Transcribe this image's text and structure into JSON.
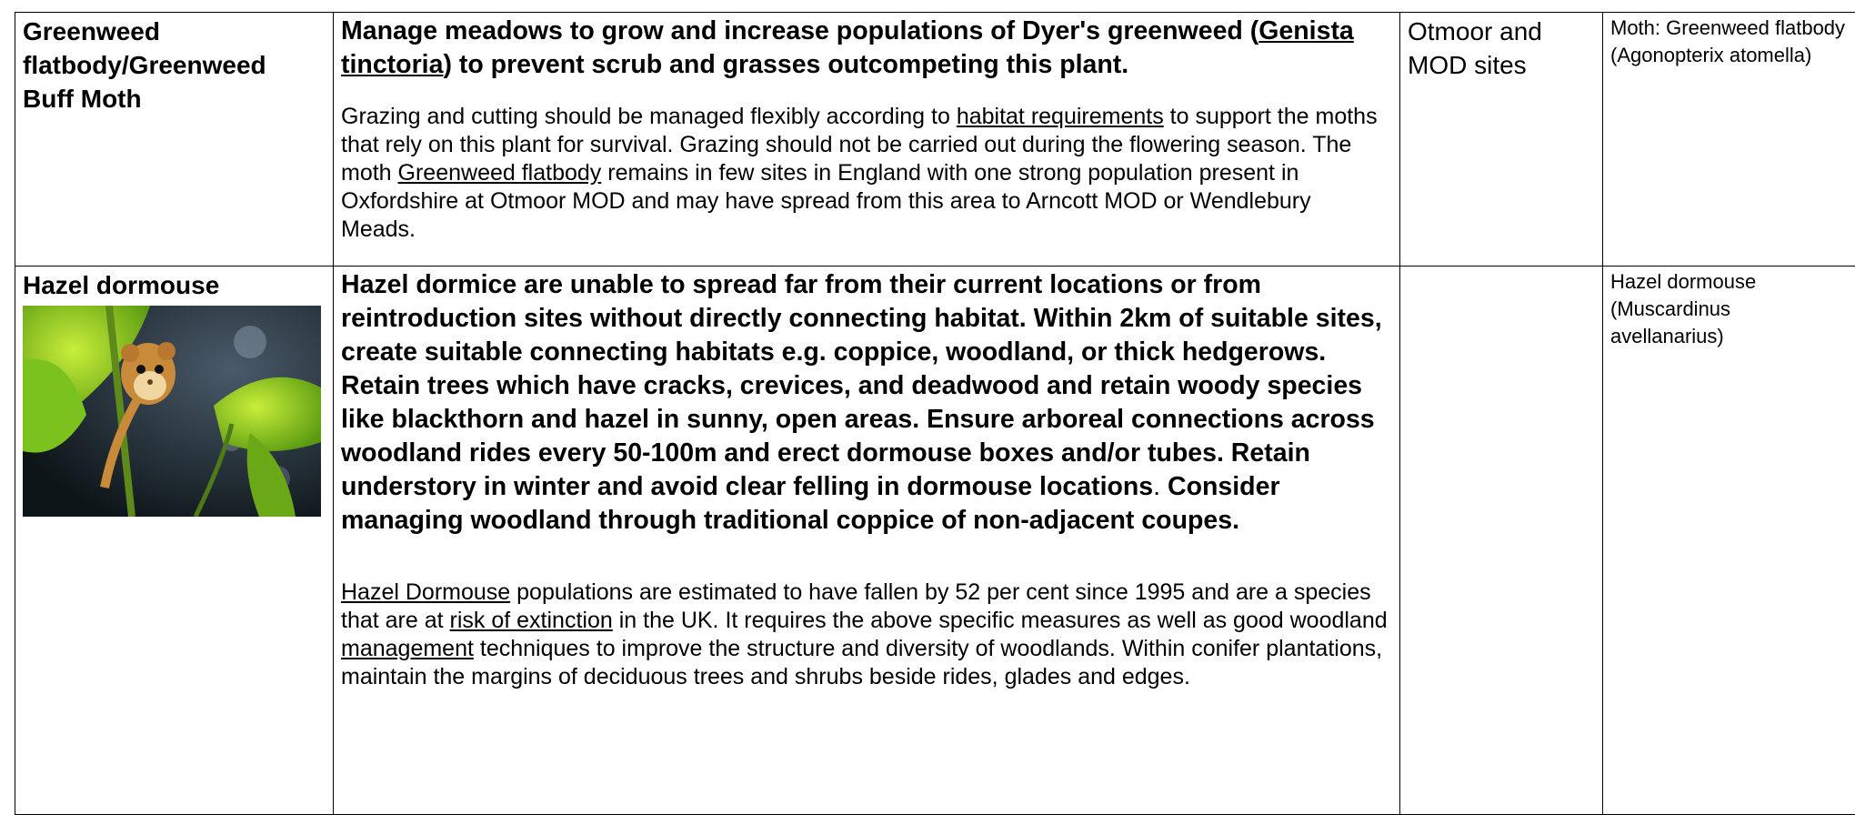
{
  "table": {
    "rows": [
      {
        "species": "Greenweed flatbody/Greenweed Buff Moth",
        "heading": [
          {
            "text": "Manage meadows to grow and increase populations of Dyer's greenweed ("
          },
          {
            "text": "Genista tinctoria",
            "link": true
          },
          {
            "text": ") to prevent scrub and grasses outcompeting this plant."
          }
        ],
        "details": [
          {
            "text": "Grazing and cutting should be managed flexibly according to "
          },
          {
            "text": "habitat requirements",
            "link": true
          },
          {
            "text": " to support the moths that rely on this plant for survival. Grazing should not be carried out during the flowering season. The moth "
          },
          {
            "text": "Greenweed flatbody",
            "link": true
          },
          {
            "text": " remains in few sites in England with one strong population present in Oxfordshire at Otmoor MOD and may have spread from this area to Arncott MOD or Wendlebury Meads."
          }
        ],
        "location": "Otmoor and MOD sites",
        "label": "Moth: Greenweed flatbody (Agonopterix atomella)"
      },
      {
        "species": "Hazel dormouse",
        "heading": [
          {
            "text": "Hazel dormice are unable to spread far from their current locations or from reintroduction sites without directly connecting habitat. Within 2km of suitable sites, create suitable connecting habitats e.g. coppice, woodland, or thick hedgerows. Retain trees which have cracks, crevices, and deadwood and retain woody species like blackthorn and hazel in sunny, open areas. Ensure arboreal connections across woodland rides every 50-100m and erect dormouse boxes and/or tubes. Retain understory in winter and avoid clear felling in dormouse locations"
          },
          {
            "text": ".",
            "bold": false
          },
          {
            "text": " Consider managing woodland through traditional coppice of non-adjacent coupes."
          }
        ],
        "details": [
          {
            "text": "Hazel Dormouse",
            "link": true
          },
          {
            "text": " populations are estimated to have fallen by 52 per cent since 1995 and are a species that are at "
          },
          {
            "text": "risk of extinction",
            "link": true
          },
          {
            "text": " in the UK. It requires the above specific measures as well as good woodland "
          },
          {
            "text": "management",
            "link": true
          },
          {
            "text": " techniques to improve the structure and diversity of woodlands. Within conifer plantations, maintain the margins of deciduous trees and shrubs beside rides, glades and edges."
          }
        ],
        "label": "Hazel dormouse (Muscardinus avellanarius)"
      }
    ]
  }
}
